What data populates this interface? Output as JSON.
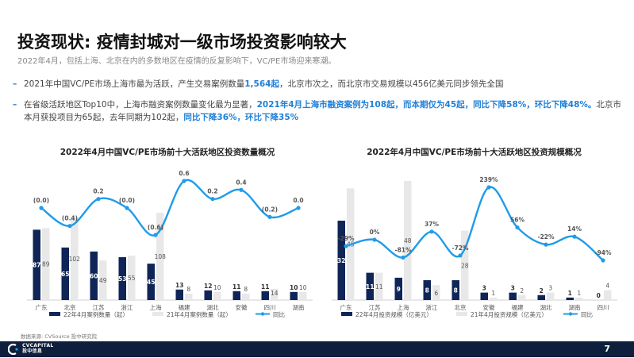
{
  "header": {
    "title": "投资现状: 疫情封城对一级市场投资影响较大",
    "subtitle": "2022年4月，包括上海、北京在内的多数地区在疫情的反复影响下，VC/PE市场迎来寒潮。"
  },
  "bullets": [
    {
      "parts": [
        {
          "text": "2021年中国VC/PE市场上海市最为活跃，产生交易案例数量",
          "hl": false
        },
        {
          "text": "1,564起",
          "hl": true
        },
        {
          "text": "，北京市次之，而北京市交易规模以456亿美元同步领先全国",
          "hl": false
        }
      ]
    },
    {
      "parts": [
        {
          "text": "在省级活跃地区Top10中，上海市融资案例数量变化最为显著，",
          "hl": false
        },
        {
          "text": "2021年4月上海市融资案例为108起，而本期仅为45起，同比下降58%，环比下降48%。",
          "hl": true
        },
        {
          "text": "北京市本月获投项目为65起，去年同期为102起，",
          "hl": false
        },
        {
          "text": "同比下降36%，环比下降35%",
          "hl": true
        }
      ]
    }
  ],
  "colors": {
    "dark_bar": "#0f2557",
    "light_bar": "#e8e8e8",
    "line": "#1f9bea",
    "accent": "#1f7fd6",
    "footer": "#0d1f3c"
  },
  "chart_data": [
    {
      "type": "bar",
      "title": "2022年4月中国VC/PE市场前十大活跃地区投资数量概况",
      "categories": [
        "广东",
        "北京",
        "江苏",
        "浙江",
        "上海",
        "福建",
        "湖北",
        "安徽",
        "四川",
        "湖南"
      ],
      "series": [
        {
          "name": "22年4月案例数量（起）",
          "type": "bar",
          "values": [
            87,
            65,
            60,
            53,
            45,
            13,
            12,
            11,
            11,
            10
          ]
        },
        {
          "name": "21年4月案例数量（起）",
          "type": "bar",
          "values": [
            89,
            102,
            49,
            55,
            108,
            8,
            10,
            8,
            14,
            10
          ]
        },
        {
          "name": "同比",
          "type": "line",
          "values": [
            0.0,
            -0.4,
            0.2,
            0.0,
            -0.6,
            0.6,
            0.2,
            0.4,
            -0.2,
            0.0
          ],
          "labels": [
            "(0.0)",
            "(0.4)",
            "0.2",
            "(0.0)",
            "(0.6)",
            "0.6",
            "0.2",
            "0.4",
            "(0.2)",
            "0.0"
          ]
        }
      ]
    },
    {
      "type": "bar",
      "title": "2022年4月中国VC/PE市场前十大活跃地区投资规模概况",
      "categories": [
        "广东",
        "江苏",
        "上海",
        "浙江",
        "北京",
        "安徽",
        "福建",
        "湖北",
        "湖南",
        "四川"
      ],
      "series": [
        {
          "name": "22年4月投资规模（亿美元）",
          "type": "bar",
          "values": [
            32,
            11,
            9,
            8,
            8,
            3,
            3,
            2,
            1,
            0
          ]
        },
        {
          "name": "21年4月投资规模（亿美元）",
          "type": "bar",
          "values": [
            45,
            11,
            48,
            6,
            28,
            1,
            2,
            3,
            1,
            4
          ]
        },
        {
          "name": "同比",
          "type": "line",
          "values": [
            -29,
            0,
            -81,
            37,
            -72,
            239,
            56,
            -22,
            14,
            -94
          ],
          "labels": [
            "-29%",
            "0%",
            "-81%",
            "37%",
            "-72%",
            "239%",
            "56%",
            "-22%",
            "14%",
            "-94%"
          ]
        }
      ]
    }
  ],
  "source_note": "数据来源: CVSource 投中研究院",
  "footer": {
    "logo_line1": "CVCAPITAL",
    "logo_line2": "投中信息",
    "page": "7"
  }
}
